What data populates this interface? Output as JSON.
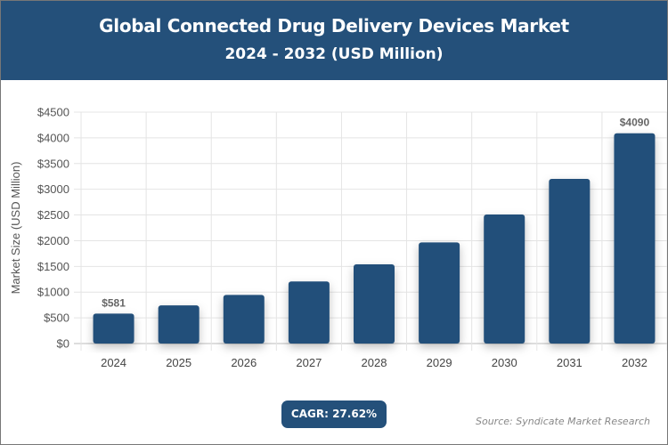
{
  "header": {
    "title": "Global Connected Drug Delivery Devices Market",
    "subtitle": "2024 - 2032 (USD Million)"
  },
  "chart_data": {
    "type": "bar",
    "categories": [
      "2024",
      "2025",
      "2026",
      "2027",
      "2028",
      "2029",
      "2030",
      "2031",
      "2032"
    ],
    "values": [
      581,
      741,
      946,
      1208,
      1541,
      1967,
      2510,
      3203,
      4090
    ],
    "data_labels": {
      "2024": "$581",
      "2032": "$4090"
    },
    "ylabel": "Market Size (USD Million)",
    "xlabel": "",
    "ylim": [
      0,
      4500
    ],
    "yticks": [
      "$0",
      "$500",
      "$1000",
      "$1500",
      "$2000",
      "$2500",
      "$3000",
      "$3500",
      "$4000",
      "$4500"
    ],
    "grid": true,
    "bar_color": "#24507a"
  },
  "footer": {
    "cagr": "CAGR: 27.62%",
    "source": "Source: Syndicate Market Research"
  }
}
